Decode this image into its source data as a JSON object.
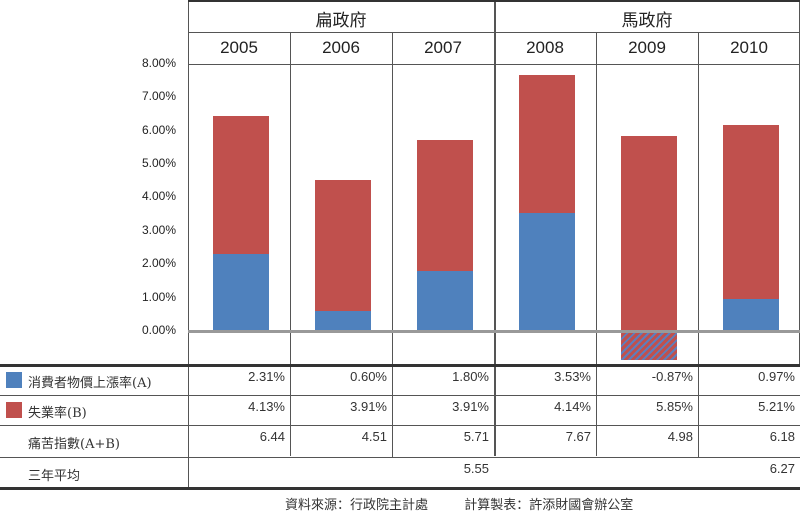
{
  "chart_data": {
    "type": "bar",
    "stacked": true,
    "categories": [
      "2005",
      "2006",
      "2007",
      "2008",
      "2009",
      "2010"
    ],
    "groups": [
      {
        "label": "扁政府",
        "span": 3
      },
      {
        "label": "馬政府",
        "span": 3
      }
    ],
    "series": [
      {
        "name": "消費者物價上漲率(A)",
        "color": "#4f81bd",
        "values": [
          2.31,
          0.6,
          1.8,
          3.53,
          -0.87,
          0.97
        ],
        "labels": [
          "2.31%",
          "0.60%",
          "1.80%",
          "3.53%",
          "-0.87%",
          "0.97%"
        ]
      },
      {
        "name": "失業率(B)",
        "color": "#c0504d",
        "values": [
          4.13,
          3.91,
          3.91,
          4.14,
          5.85,
          5.21
        ],
        "labels": [
          "4.13%",
          "3.91%",
          "3.91%",
          "4.14%",
          "5.85%",
          "5.21%"
        ]
      }
    ],
    "misery_index": {
      "label": "痛苦指數(A+B)",
      "values": [
        "6.44",
        "4.51",
        "5.71",
        "7.67",
        "4.98",
        "6.18"
      ]
    },
    "three_year_avg": {
      "label": "三年平均",
      "values": [
        "5.55",
        "6.27"
      ]
    },
    "yticks": [
      "0.00%",
      "1.00%",
      "2.00%",
      "3.00%",
      "4.00%",
      "5.00%",
      "6.00%",
      "7.00%",
      "8.00%"
    ],
    "ylim": [
      -1,
      8
    ]
  },
  "footer": {
    "source": "資料來源：行政院主計處",
    "maker": "計算製表：許添財國會辦公室"
  }
}
